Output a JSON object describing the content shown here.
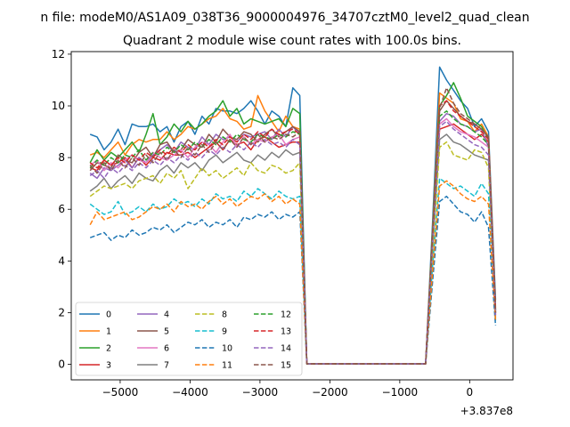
{
  "figure": {
    "suptitle": "n file: modeM0/AS1A09_038T36_9000004976_34707cztM0_level2_quad_clean"
  },
  "chart_data": {
    "type": "line",
    "title": "Quadrant 2 module wise count rates with 100.0s bins.",
    "xlabel": "",
    "ylabel": "",
    "x_offset_label": "+3.837e8",
    "xlim": [
      -5700,
      620
    ],
    "ylim": [
      -0.6,
      12.1
    ],
    "xticks": [
      -5000,
      -4000,
      -3000,
      -2000,
      -1000,
      0
    ],
    "xtick_labels": [
      "−5000",
      "−4000",
      "−3000",
      "−2000",
      "−1000",
      "0"
    ],
    "yticks": [
      0,
      2,
      4,
      6,
      8,
      10,
      12
    ],
    "ytick_labels": [
      "0",
      "2",
      "4",
      "6",
      "8",
      "10",
      "12"
    ],
    "grid": false,
    "legend": {
      "placement": "lower-left",
      "columns": 4
    },
    "x": [
      -5430,
      -5330,
      -5230,
      -5130,
      -5030,
      -4930,
      -4830,
      -4730,
      -4630,
      -4530,
      -4430,
      -4330,
      -4230,
      -4130,
      -4030,
      -3930,
      -3830,
      -3730,
      -3630,
      -3530,
      -3430,
      -3330,
      -3230,
      -3130,
      -3030,
      -2930,
      -2830,
      -2730,
      -2630,
      -2530,
      -2430,
      -2330,
      -2230,
      -2130,
      -2030,
      -1930,
      -1830,
      -1730,
      -1630,
      -1530,
      -1430,
      -1330,
      -1230,
      -1130,
      -1030,
      -930,
      -830,
      -730,
      -630,
      -530,
      -430,
      -330,
      -230,
      -130,
      -30,
      70,
      170,
      270,
      370
    ],
    "series": [
      {
        "name": "0",
        "color": "#1f77b4",
        "dash": "solid",
        "values": [
          8.9,
          8.8,
          8.3,
          8.6,
          9.1,
          8.5,
          9.3,
          9.2,
          9.2,
          9.3,
          9.0,
          9.2,
          8.6,
          9.2,
          9.4,
          8.9,
          9.6,
          9.3,
          9.9,
          9.8,
          9.8,
          9.7,
          9.9,
          10.2,
          9.8,
          9.3,
          9.8,
          9.6,
          9.2,
          10.7,
          10.4,
          0.02,
          0.02,
          0.02,
          0.02,
          0.02,
          0.02,
          0.02,
          0.02,
          0.02,
          0.02,
          0.02,
          0.02,
          0.02,
          0.02,
          0.02,
          0.02,
          0.02,
          0.02,
          5.5,
          11.5,
          11.0,
          10.6,
          10.2,
          9.9,
          9.2,
          9.5,
          9.0,
          2.5
        ]
      },
      {
        "name": "1",
        "color": "#ff7f0e",
        "dash": "solid",
        "values": [
          8.1,
          8.2,
          8.0,
          8.3,
          8.6,
          8.1,
          8.5,
          8.7,
          8.6,
          8.7,
          8.7,
          9.0,
          8.7,
          8.9,
          9.2,
          9.1,
          9.3,
          9.5,
          9.6,
          9.9,
          9.5,
          9.4,
          9.1,
          9.2,
          10.4,
          9.8,
          9.4,
          9.0,
          9.6,
          9.2,
          9.1,
          0.02,
          0.02,
          0.02,
          0.02,
          0.02,
          0.02,
          0.02,
          0.02,
          0.02,
          0.02,
          0.02,
          0.02,
          0.02,
          0.02,
          0.02,
          0.02,
          0.02,
          0.02,
          5.2,
          10.5,
          10.3,
          10.1,
          9.5,
          9.4,
          9.0,
          9.3,
          8.8,
          2.2
        ]
      },
      {
        "name": "2",
        "color": "#2ca02c",
        "dash": "solid",
        "values": [
          7.8,
          8.3,
          7.9,
          8.2,
          8.0,
          8.3,
          8.6,
          8.2,
          8.9,
          9.7,
          8.5,
          8.8,
          9.3,
          9.0,
          9.4,
          9.1,
          9.3,
          9.6,
          9.8,
          10.2,
          9.6,
          9.9,
          9.3,
          9.5,
          9.4,
          9.3,
          9.4,
          9.5,
          9.2,
          9.9,
          9.7,
          0.02,
          0.02,
          0.02,
          0.02,
          0.02,
          0.02,
          0.02,
          0.02,
          0.02,
          0.02,
          0.02,
          0.02,
          0.02,
          0.02,
          0.02,
          0.02,
          0.02,
          0.02,
          5.1,
          10.0,
          10.4,
          10.9,
          10.3,
          9.6,
          9.4,
          9.2,
          8.7,
          2.1
        ]
      },
      {
        "name": "3",
        "color": "#d62728",
        "dash": "solid",
        "values": [
          7.6,
          7.5,
          7.9,
          7.7,
          7.8,
          8.0,
          7.6,
          8.0,
          7.7,
          8.0,
          7.9,
          8.2,
          8.1,
          8.1,
          8.2,
          8.0,
          8.2,
          8.4,
          8.6,
          8.3,
          8.7,
          8.5,
          8.6,
          8.3,
          8.7,
          8.8,
          8.6,
          8.4,
          8.5,
          8.6,
          8.6,
          0.02,
          0.02,
          0.02,
          0.02,
          0.02,
          0.02,
          0.02,
          0.02,
          0.02,
          0.02,
          0.02,
          0.02,
          0.02,
          0.02,
          0.02,
          0.02,
          0.02,
          0.02,
          4.7,
          9.1,
          9.2,
          9.3,
          9.1,
          8.9,
          8.7,
          8.9,
          8.6,
          2.0
        ]
      },
      {
        "name": "4",
        "color": "#9467bd",
        "dash": "solid",
        "values": [
          7.4,
          7.2,
          7.6,
          7.5,
          7.7,
          7.9,
          7.6,
          8.0,
          7.8,
          8.1,
          8.3,
          8.5,
          8.2,
          8.6,
          8.4,
          8.3,
          8.8,
          8.5,
          8.9,
          8.7,
          8.8,
          8.6,
          8.9,
          8.8,
          8.9,
          9.0,
          8.7,
          9.1,
          8.8,
          9.2,
          8.9,
          0.02,
          0.02,
          0.02,
          0.02,
          0.02,
          0.02,
          0.02,
          0.02,
          0.02,
          0.02,
          0.02,
          0.02,
          0.02,
          0.02,
          0.02,
          0.02,
          0.02,
          0.02,
          4.8,
          9.4,
          9.7,
          9.6,
          9.3,
          9.2,
          9.0,
          9.1,
          8.4,
          2.0
        ]
      },
      {
        "name": "5",
        "color": "#8c564b",
        "dash": "solid",
        "values": [
          7.5,
          7.8,
          7.7,
          7.6,
          8.1,
          7.9,
          7.8,
          8.2,
          8.4,
          8.0,
          8.5,
          8.6,
          8.2,
          8.3,
          8.7,
          8.5,
          8.4,
          8.9,
          8.6,
          9.1,
          8.8,
          8.7,
          9.0,
          8.9,
          8.6,
          8.9,
          9.1,
          8.8,
          9.0,
          9.2,
          9.0,
          0.02,
          0.02,
          0.02,
          0.02,
          0.02,
          0.02,
          0.02,
          0.02,
          0.02,
          0.02,
          0.02,
          0.02,
          0.02,
          0.02,
          0.02,
          0.02,
          0.02,
          0.02,
          4.9,
          9.8,
          10.2,
          9.9,
          9.6,
          9.4,
          9.3,
          9.1,
          8.8,
          2.1
        ]
      },
      {
        "name": "6",
        "color": "#e377c2",
        "dash": "solid",
        "values": [
          7.7,
          7.9,
          7.5,
          7.8,
          7.6,
          7.9,
          8.1,
          7.9,
          7.8,
          8.2,
          8.0,
          7.9,
          8.1,
          8.3,
          8.0,
          8.4,
          8.6,
          8.5,
          8.2,
          8.6,
          8.9,
          8.4,
          8.8,
          8.5,
          8.7,
          8.6,
          8.8,
          8.9,
          8.5,
          8.7,
          8.8,
          0.02,
          0.02,
          0.02,
          0.02,
          0.02,
          0.02,
          0.02,
          0.02,
          0.02,
          0.02,
          0.02,
          0.02,
          0.02,
          0.02,
          0.02,
          0.02,
          0.02,
          0.02,
          4.8,
          9.3,
          9.5,
          9.2,
          9.0,
          8.9,
          8.8,
          8.6,
          8.4,
          1.9
        ]
      },
      {
        "name": "7",
        "color": "#7f7f7f",
        "dash": "solid",
        "values": [
          6.7,
          6.9,
          7.2,
          6.8,
          7.1,
          7.3,
          7.0,
          7.4,
          7.2,
          7.1,
          7.5,
          7.7,
          7.4,
          7.8,
          7.6,
          7.8,
          7.5,
          7.9,
          8.1,
          7.8,
          8.0,
          8.2,
          7.9,
          7.8,
          8.1,
          7.9,
          8.2,
          8.0,
          8.3,
          8.1,
          8.2,
          0.02,
          0.02,
          0.02,
          0.02,
          0.02,
          0.02,
          0.02,
          0.02,
          0.02,
          0.02,
          0.02,
          0.02,
          0.02,
          0.02,
          0.02,
          0.02,
          0.02,
          0.02,
          4.5,
          8.7,
          8.9,
          8.6,
          8.5,
          8.3,
          8.1,
          8.0,
          7.9,
          1.8
        ]
      },
      {
        "name": "8",
        "color": "#bcbd22",
        "dash": "dashed",
        "values": [
          6.5,
          6.7,
          6.9,
          6.8,
          6.9,
          7.0,
          6.8,
          7.1,
          7.2,
          7.3,
          7.0,
          7.4,
          7.2,
          7.5,
          6.8,
          7.2,
          7.6,
          7.3,
          7.5,
          7.2,
          7.4,
          7.6,
          7.3,
          7.8,
          7.5,
          7.4,
          7.7,
          7.6,
          7.4,
          7.5,
          7.8,
          0.02,
          0.02,
          0.02,
          0.02,
          0.02,
          0.02,
          0.02,
          0.02,
          0.02,
          0.02,
          0.02,
          0.02,
          0.02,
          0.02,
          0.02,
          0.02,
          0.02,
          0.02,
          4.3,
          8.4,
          8.6,
          8.1,
          8.0,
          7.9,
          8.3,
          8.2,
          7.6,
          1.7
        ]
      },
      {
        "name": "9",
        "color": "#17becf",
        "dash": "dashed",
        "values": [
          6.2,
          6.0,
          5.8,
          5.9,
          6.3,
          5.8,
          5.9,
          6.1,
          5.9,
          6.2,
          6.0,
          6.1,
          6.4,
          6.2,
          6.3,
          6.1,
          6.4,
          6.2,
          6.6,
          6.4,
          6.5,
          6.3,
          6.7,
          6.5,
          6.8,
          6.6,
          6.4,
          6.7,
          6.5,
          6.4,
          6.5,
          0.02,
          0.02,
          0.02,
          0.02,
          0.02,
          0.02,
          0.02,
          0.02,
          0.02,
          0.02,
          0.02,
          0.02,
          0.02,
          0.02,
          0.02,
          0.02,
          0.02,
          0.02,
          3.8,
          7.2,
          7.0,
          6.8,
          6.9,
          6.7,
          6.5,
          7.0,
          6.6,
          1.6
        ]
      },
      {
        "name": "10",
        "color": "#1f77b4",
        "dash": "dashed",
        "values": [
          4.9,
          5.0,
          5.1,
          4.8,
          5.0,
          4.9,
          5.2,
          5.0,
          5.1,
          5.3,
          5.2,
          5.4,
          5.1,
          5.3,
          5.5,
          5.4,
          5.6,
          5.3,
          5.5,
          5.4,
          5.6,
          5.3,
          5.7,
          5.6,
          5.8,
          5.7,
          5.9,
          5.6,
          5.8,
          5.7,
          5.9,
          0.02,
          0.02,
          0.02,
          0.02,
          0.02,
          0.02,
          0.02,
          0.02,
          0.02,
          0.02,
          0.02,
          0.02,
          0.02,
          0.02,
          0.02,
          0.02,
          0.02,
          0.02,
          3.2,
          6.3,
          6.5,
          6.2,
          5.9,
          5.8,
          5.5,
          5.9,
          5.3,
          1.5
        ]
      },
      {
        "name": "11",
        "color": "#ff7f0e",
        "dash": "dashed",
        "values": [
          5.4,
          5.9,
          5.6,
          5.7,
          5.8,
          5.9,
          5.6,
          5.7,
          5.9,
          6.1,
          6.0,
          6.2,
          5.9,
          6.3,
          6.1,
          6.2,
          6.0,
          6.3,
          6.5,
          6.2,
          6.4,
          6.1,
          6.3,
          6.5,
          6.4,
          6.6,
          6.3,
          6.5,
          6.2,
          6.4,
          6.2,
          0.02,
          0.02,
          0.02,
          0.02,
          0.02,
          0.02,
          0.02,
          0.02,
          0.02,
          0.02,
          0.02,
          0.02,
          0.02,
          0.02,
          0.02,
          0.02,
          0.02,
          0.02,
          3.6,
          6.9,
          7.1,
          6.9,
          6.6,
          6.4,
          6.3,
          6.5,
          6.2,
          1.7
        ]
      },
      {
        "name": "12",
        "color": "#2ca02c",
        "dash": "dashed",
        "values": [
          7.6,
          7.9,
          7.7,
          8.0,
          7.8,
          8.1,
          8.0,
          8.3,
          7.9,
          8.2,
          8.1,
          8.4,
          8.2,
          8.5,
          8.3,
          8.6,
          8.4,
          8.7,
          8.5,
          8.8,
          8.6,
          8.9,
          8.7,
          8.6,
          8.9,
          8.8,
          8.7,
          8.9,
          8.8,
          9.0,
          8.9,
          0.02,
          0.02,
          0.02,
          0.02,
          0.02,
          0.02,
          0.02,
          0.02,
          0.02,
          0.02,
          0.02,
          0.02,
          0.02,
          0.02,
          0.02,
          0.02,
          0.02,
          0.02,
          4.9,
          9.6,
          9.8,
          9.5,
          9.3,
          9.2,
          9.0,
          8.8,
          8.5,
          2.0
        ]
      },
      {
        "name": "13",
        "color": "#d62728",
        "dash": "dashed",
        "values": [
          7.8,
          7.6,
          7.9,
          7.7,
          8.0,
          7.8,
          8.1,
          7.9,
          8.2,
          8.0,
          8.3,
          8.1,
          8.4,
          8.2,
          8.5,
          8.3,
          8.6,
          8.4,
          8.7,
          8.5,
          8.8,
          8.6,
          8.9,
          8.7,
          9.0,
          8.8,
          9.1,
          8.9,
          9.0,
          9.1,
          8.9,
          0.02,
          0.02,
          0.02,
          0.02,
          0.02,
          0.02,
          0.02,
          0.02,
          0.02,
          0.02,
          0.02,
          0.02,
          0.02,
          0.02,
          0.02,
          0.02,
          0.02,
          0.02,
          5.0,
          10.0,
          10.2,
          9.8,
          9.6,
          9.4,
          9.2,
          9.0,
          8.7,
          2.1
        ]
      },
      {
        "name": "14",
        "color": "#9467bd",
        "dash": "dashed",
        "values": [
          7.3,
          7.5,
          7.2,
          7.6,
          7.4,
          7.7,
          7.5,
          7.8,
          7.6,
          7.9,
          7.7,
          8.0,
          7.8,
          8.1,
          7.9,
          8.2,
          8.0,
          8.3,
          8.1,
          8.4,
          8.2,
          8.5,
          8.3,
          8.6,
          8.4,
          8.7,
          8.5,
          8.6,
          8.4,
          8.7,
          8.5,
          0.02,
          0.02,
          0.02,
          0.02,
          0.02,
          0.02,
          0.02,
          0.02,
          0.02,
          0.02,
          0.02,
          0.02,
          0.02,
          0.02,
          0.02,
          0.02,
          0.02,
          0.02,
          4.7,
          9.2,
          9.4,
          9.1,
          8.9,
          8.7,
          8.5,
          8.4,
          8.1,
          1.9
        ]
      },
      {
        "name": "15",
        "color": "#8c564b",
        "dash": "dashed",
        "values": [
          7.7,
          7.4,
          7.8,
          7.5,
          7.9,
          7.6,
          8.0,
          7.7,
          8.1,
          7.8,
          8.2,
          7.9,
          8.3,
          8.0,
          8.4,
          8.1,
          8.5,
          8.2,
          8.6,
          8.3,
          8.7,
          8.4,
          8.8,
          8.5,
          8.9,
          8.6,
          8.8,
          8.7,
          8.9,
          8.8,
          9.0,
          0.02,
          0.02,
          0.02,
          0.02,
          0.02,
          0.02,
          0.02,
          0.02,
          0.02,
          0.02,
          0.02,
          0.02,
          0.02,
          0.02,
          0.02,
          0.02,
          0.02,
          0.02,
          5.0,
          9.9,
          10.7,
          10.1,
          9.7,
          9.5,
          9.3,
          9.1,
          8.8,
          2.0
        ]
      }
    ]
  }
}
